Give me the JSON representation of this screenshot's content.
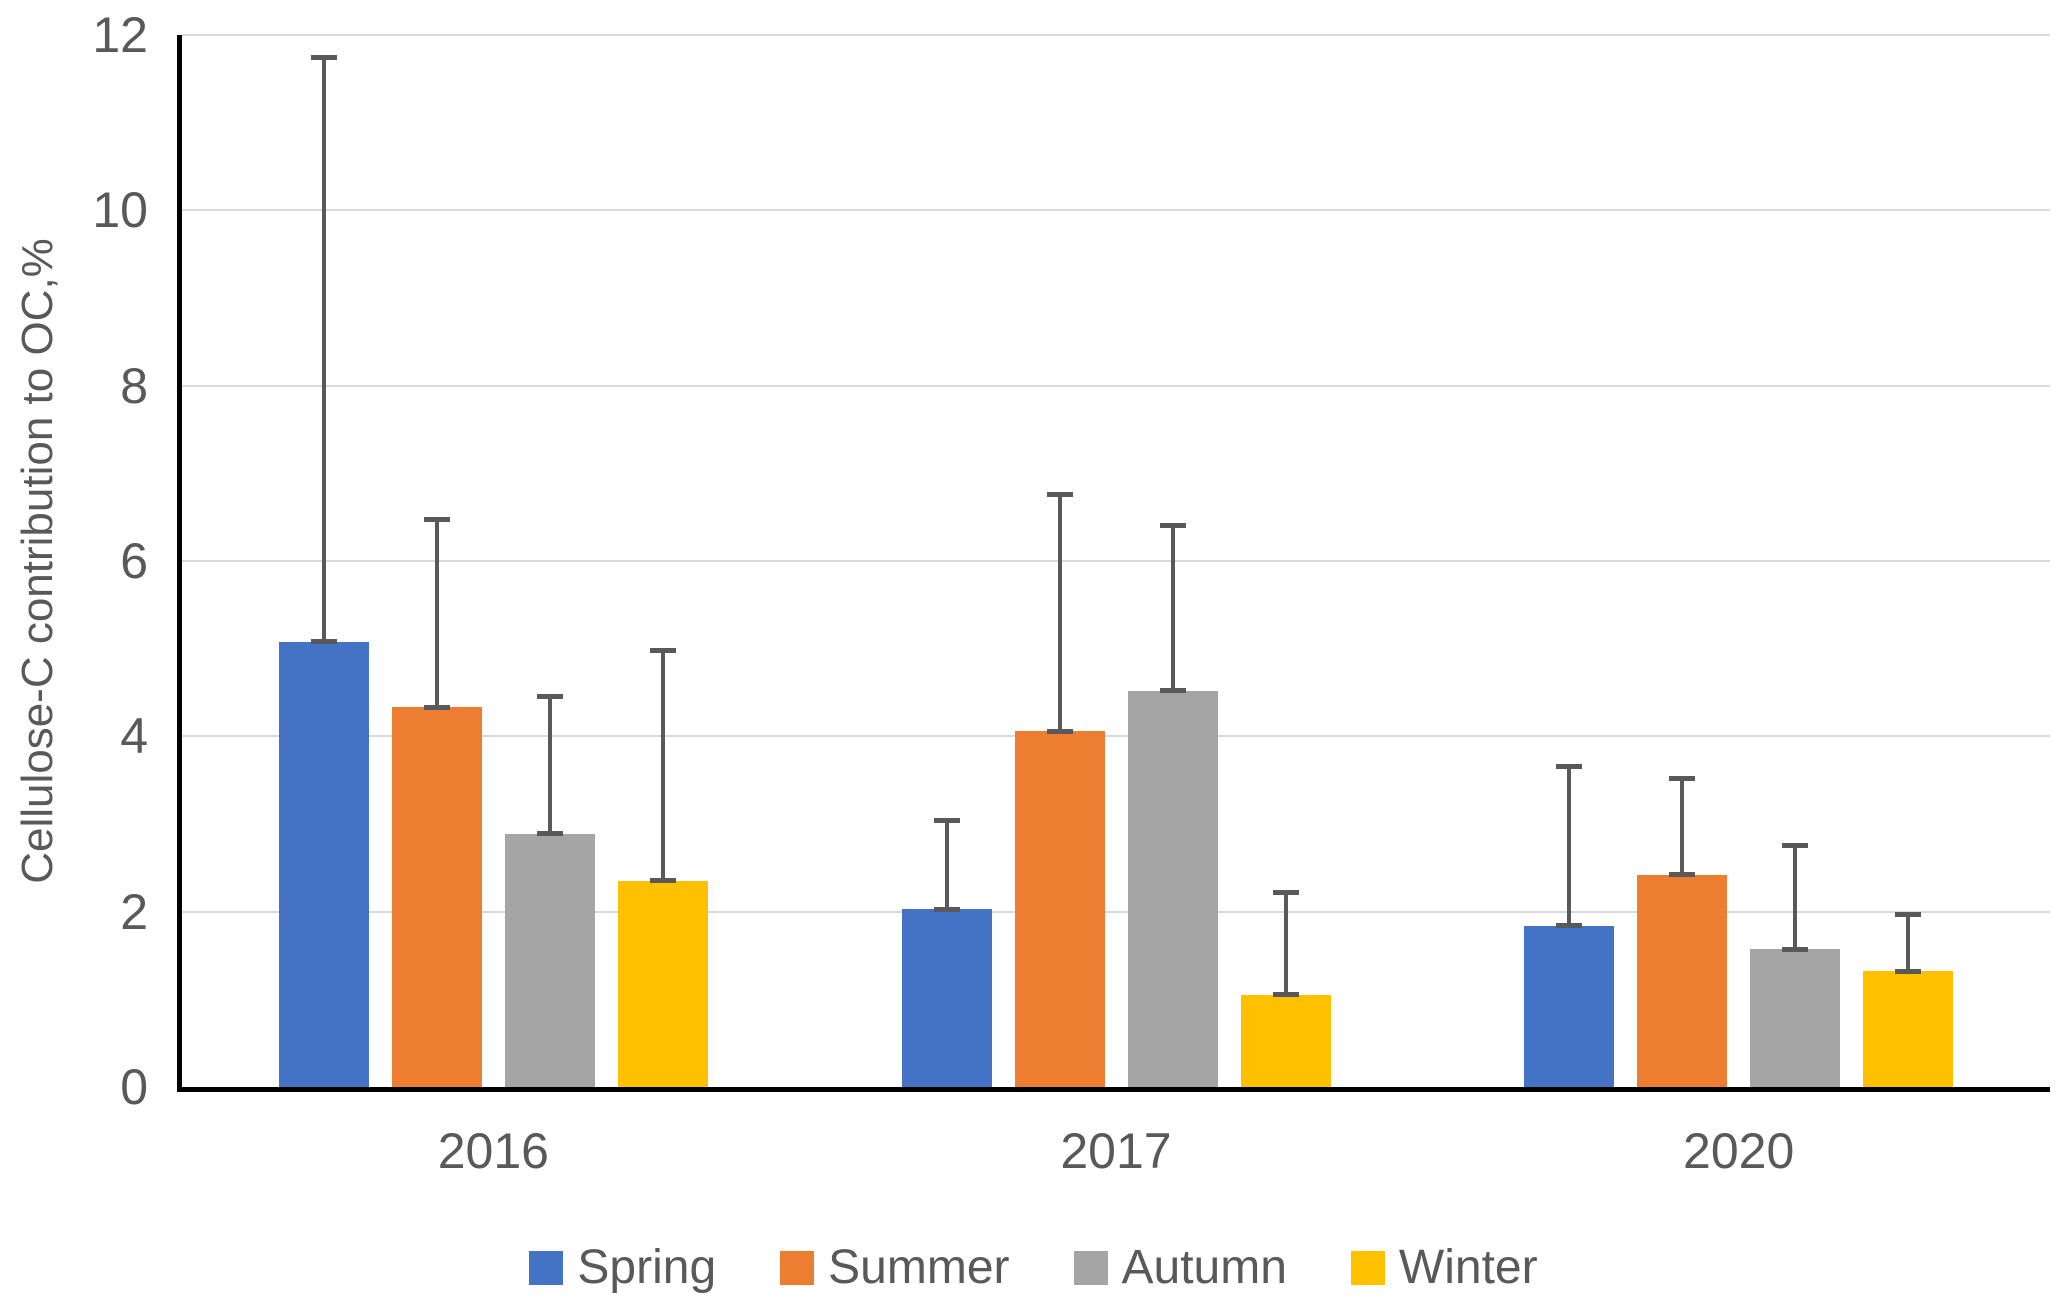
{
  "figure": {
    "background": "#FFFFFF"
  },
  "chart_data": {
    "type": "bar",
    "title": "",
    "xlabel": "",
    "ylabel": "Cellulose-C contribution to OC,%",
    "ylim": [
      0,
      12
    ],
    "yticks": [
      0,
      2,
      4,
      6,
      8,
      10,
      12
    ],
    "grid": true,
    "legend_position": "bottom",
    "categories": [
      "2016",
      "2017",
      "2020"
    ],
    "series": [
      {
        "name": "Spring",
        "color": "#4472C4",
        "values": [
          5.08,
          2.03,
          1.84
        ],
        "error_plus": [
          6.66,
          1.01,
          1.82
        ]
      },
      {
        "name": "Summer",
        "color": "#ED7D31",
        "values": [
          4.33,
          4.06,
          2.42
        ],
        "error_plus": [
          2.14,
          2.7,
          1.1
        ]
      },
      {
        "name": "Autumn",
        "color": "#A5A5A5",
        "values": [
          2.89,
          4.52,
          1.57
        ],
        "error_plus": [
          1.57,
          1.88,
          1.19
        ]
      },
      {
        "name": "Winter",
        "color": "#FFC000",
        "values": [
          2.35,
          1.05,
          1.32
        ],
        "error_plus": [
          2.63,
          1.17,
          0.65
        ]
      }
    ],
    "error_bar_color": "#595959",
    "gridline_color": "#D9D9D9",
    "axis_color": "#000000",
    "text_color": "#595959"
  }
}
